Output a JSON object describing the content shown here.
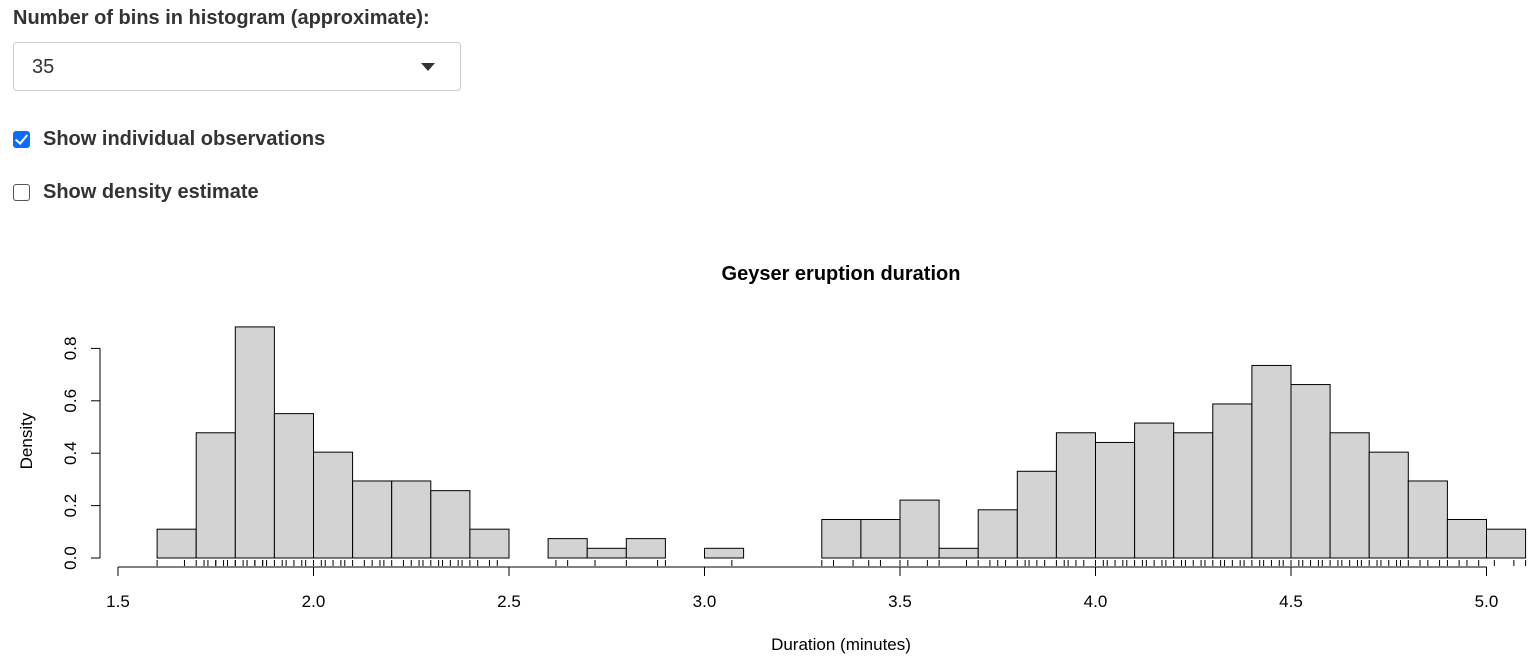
{
  "controls": {
    "bins_label": "Number of bins in histogram (approximate):",
    "bins_selected": "35",
    "show_observations_label": "Show individual observations",
    "show_observations_checked": true,
    "show_density_label": "Show density estimate",
    "show_density_checked": false
  },
  "chart_data": {
    "type": "bar",
    "title": "Geyser eruption duration",
    "xlabel": "Duration (minutes)",
    "ylabel": "Density",
    "xlim": [
      1.5,
      5.1
    ],
    "ylim": [
      0,
      0.88
    ],
    "x_ticks": [
      "1.5",
      "2.0",
      "2.5",
      "3.0",
      "3.5",
      "4.0",
      "4.5",
      "5.0"
    ],
    "y_ticks": [
      "0.0",
      "0.2",
      "0.4",
      "0.6",
      "0.8"
    ],
    "bin_width": 0.1,
    "bin_starts": [
      1.6,
      1.7,
      1.8,
      1.9,
      2.0,
      2.1,
      2.2,
      2.3,
      2.4,
      2.5,
      2.6,
      2.7,
      2.8,
      2.9,
      3.0,
      3.1,
      3.2,
      3.3,
      3.4,
      3.5,
      3.6,
      3.7,
      3.8,
      3.9,
      4.0,
      4.1,
      4.2,
      4.3,
      4.4,
      4.5,
      4.6,
      4.7,
      4.8,
      4.9,
      5.0
    ],
    "values": [
      0.11,
      0.478,
      0.882,
      0.551,
      0.404,
      0.294,
      0.294,
      0.257,
      0.11,
      0.0,
      0.074,
      0.037,
      0.074,
      0.0,
      0.037,
      0.0,
      0.0,
      0.147,
      0.147,
      0.221,
      0.037,
      0.184,
      0.331,
      0.478,
      0.441,
      0.515,
      0.478,
      0.588,
      0.735,
      0.662,
      0.478,
      0.404,
      0.294,
      0.147,
      0.11
    ],
    "bar_color": "#d3d3d3",
    "rug": [
      1.6,
      1.67,
      1.7,
      1.72,
      1.73,
      1.75,
      1.75,
      1.77,
      1.78,
      1.8,
      1.8,
      1.82,
      1.83,
      1.83,
      1.85,
      1.85,
      1.87,
      1.87,
      1.88,
      1.9,
      1.92,
      1.93,
      1.95,
      1.97,
      1.98,
      2.0,
      2.02,
      2.03,
      2.05,
      2.07,
      2.08,
      2.1,
      2.13,
      2.15,
      2.17,
      2.18,
      2.2,
      2.23,
      2.25,
      2.27,
      2.28,
      2.3,
      2.32,
      2.33,
      2.35,
      2.37,
      2.38,
      2.4,
      2.42,
      2.45,
      2.47,
      2.62,
      2.65,
      2.72,
      2.8,
      2.88,
      2.9,
      3.07,
      3.3,
      3.33,
      3.38,
      3.42,
      3.45,
      3.5,
      3.52,
      3.57,
      3.6,
      3.67,
      3.7,
      3.73,
      3.75,
      3.77,
      3.8,
      3.82,
      3.83,
      3.85,
      3.87,
      3.9,
      3.92,
      3.93,
      3.95,
      3.97,
      4.0,
      4.02,
      4.03,
      4.05,
      4.07,
      4.08,
      4.1,
      4.12,
      4.13,
      4.15,
      4.17,
      4.18,
      4.2,
      4.22,
      4.23,
      4.25,
      4.27,
      4.28,
      4.3,
      4.32,
      4.33,
      4.35,
      4.37,
      4.38,
      4.4,
      4.42,
      4.43,
      4.45,
      4.47,
      4.48,
      4.5,
      4.52,
      4.53,
      4.55,
      4.57,
      4.58,
      4.6,
      4.62,
      4.63,
      4.65,
      4.67,
      4.68,
      4.7,
      4.72,
      4.73,
      4.75,
      4.77,
      4.78,
      4.8,
      4.83,
      4.85,
      4.88,
      4.9,
      4.93,
      4.95,
      4.98,
      5.02,
      5.07,
      5.1
    ]
  }
}
